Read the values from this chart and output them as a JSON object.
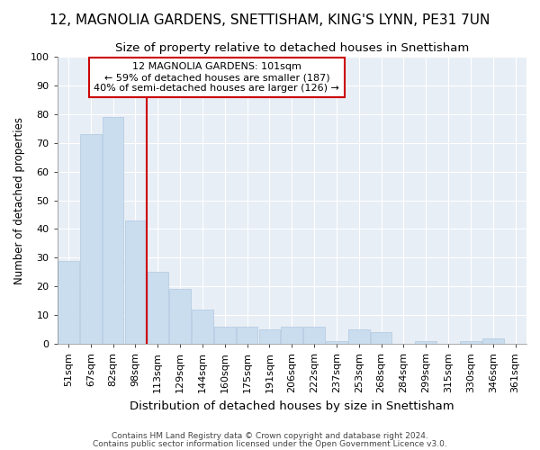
{
  "title": "12, MAGNOLIA GARDENS, SNETTISHAM, KING'S LYNN, PE31 7UN",
  "subtitle": "Size of property relative to detached houses in Snettisham",
  "xlabel": "Distribution of detached houses by size in Snettisham",
  "ylabel": "Number of detached properties",
  "categories": [
    "51sqm",
    "67sqm",
    "82sqm",
    "98sqm",
    "113sqm",
    "129sqm",
    "144sqm",
    "160sqm",
    "175sqm",
    "191sqm",
    "206sqm",
    "222sqm",
    "237sqm",
    "253sqm",
    "268sqm",
    "284sqm",
    "299sqm",
    "315sqm",
    "330sqm",
    "346sqm",
    "361sqm"
  ],
  "values": [
    29,
    73,
    79,
    43,
    25,
    19,
    12,
    6,
    6,
    5,
    6,
    6,
    1,
    5,
    4,
    0,
    1,
    0,
    1,
    2,
    0
  ],
  "bar_color": "#c9ddef",
  "bar_edge_color": "#b0c8e0",
  "vline_x_idx": 3,
  "vline_color": "#cc0000",
  "ylim": [
    0,
    100
  ],
  "yticks": [
    0,
    10,
    20,
    30,
    40,
    50,
    60,
    70,
    80,
    90,
    100
  ],
  "annotation_text": "12 MAGNOLIA GARDENS: 101sqm\n← 59% of detached houses are smaller (187)\n40% of semi-detached houses are larger (126) →",
  "annotation_box_facecolor": "#ffffff",
  "annotation_box_edgecolor": "#cc0000",
  "footnote1": "Contains HM Land Registry data © Crown copyright and database right 2024.",
  "footnote2": "Contains public sector information licensed under the Open Government Licence v3.0.",
  "fig_facecolor": "#ffffff",
  "axes_facecolor": "#e8eef5",
  "grid_color": "#ffffff",
  "title_fontsize": 11,
  "subtitle_fontsize": 9.5,
  "xlabel_fontsize": 9.5,
  "ylabel_fontsize": 8.5,
  "tick_fontsize": 8,
  "annotation_fontsize": 8,
  "footnote_fontsize": 6.5
}
